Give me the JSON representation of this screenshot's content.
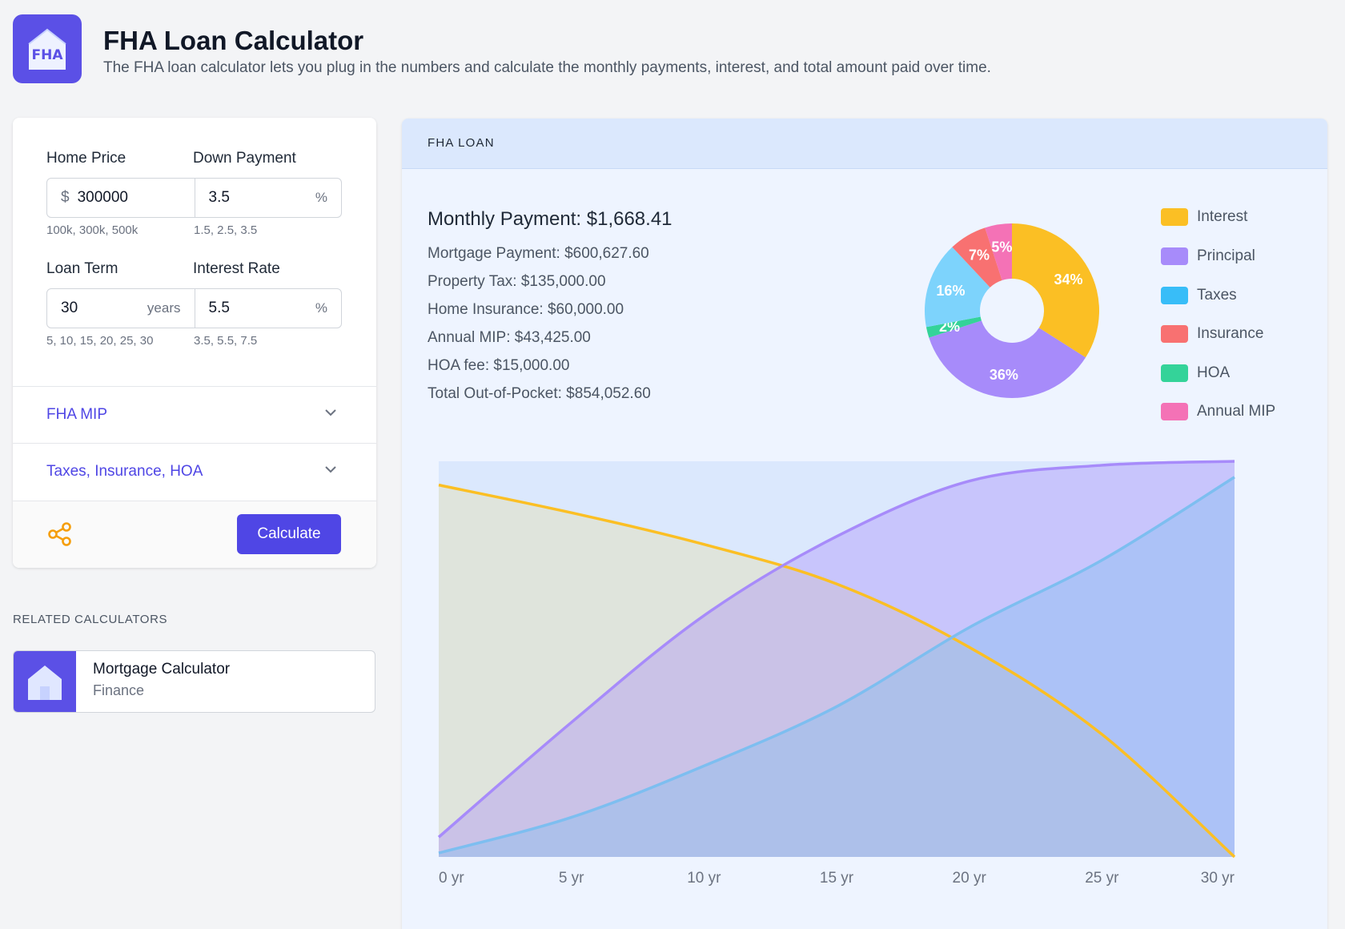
{
  "app": {
    "logo_text": "FHA",
    "title": "FHA Loan Calculator",
    "subtitle": "The FHA loan calculator lets you plug in the numbers and calculate the monthly payments, interest, and total amount paid over time."
  },
  "form": {
    "home_price": {
      "label": "Home Price",
      "prefix": "$",
      "value": "300000",
      "hint": "100k, 300k, 500k"
    },
    "down_payment": {
      "label": "Down Payment",
      "value": "3.5",
      "suffix": "%",
      "hint": "1.5, 2.5, 3.5"
    },
    "loan_term": {
      "label": "Loan Term",
      "value": "30",
      "suffix": "years",
      "hint": "5, 10, 15, 20, 25, 30"
    },
    "interest_rate": {
      "label": "Interest Rate",
      "value": "5.5",
      "suffix": "%",
      "hint": "3.5, 5.5, 7.5"
    },
    "accordions": [
      "FHA MIP",
      "Taxes, Insurance, HOA"
    ],
    "calculate_label": "Calculate"
  },
  "related": {
    "heading": "RELATED CALCULATORS",
    "items": [
      {
        "title": "Mortgage Calculator",
        "category": "Finance"
      }
    ]
  },
  "results": {
    "panel_title": "FHA LOAN",
    "monthly_payment": "Monthly Payment: $1,668.41",
    "lines": [
      "Mortgage Payment: $600,627.60",
      "Property Tax: $135,000.00",
      "Home Insurance: $60,000.00",
      "Annual MIP: $43,425.00",
      "HOA fee: $15,000.00",
      "Total Out-of-Pocket: $854,052.60"
    ]
  },
  "colors": {
    "brand": "#5b50e6",
    "accent": "#4f46e5",
    "share": "#f59e0b"
  },
  "chart_data": [
    {
      "type": "pie",
      "title": "",
      "categories": [
        "Interest",
        "Principal",
        "Taxes",
        "Insurance",
        "HOA",
        "Annual MIP"
      ],
      "values": [
        34,
        36,
        16,
        7,
        2,
        5
      ],
      "slice_order": [
        "Interest",
        "Principal",
        "HOA",
        "Taxes",
        "Insurance",
        "Annual MIP"
      ],
      "slice_values": [
        34,
        36,
        2,
        16,
        7,
        5
      ],
      "labels": [
        "34%",
        "36%",
        "2%",
        "16%",
        "7%",
        "5%"
      ],
      "colors": [
        "#fbbf24",
        "#a78bfa",
        "#34d399",
        "#7dd3fc",
        "#f87171",
        "#f472b6"
      ],
      "legend": {
        "position": "right",
        "items": [
          {
            "label": "Interest",
            "color": "#fbbf24"
          },
          {
            "label": "Principal",
            "color": "#a78bfa"
          },
          {
            "label": "Taxes",
            "color": "#38bdf8"
          },
          {
            "label": "Insurance",
            "color": "#f87171"
          },
          {
            "label": "HOA",
            "color": "#34d399"
          },
          {
            "label": "Annual MIP",
            "color": "#f472b6"
          }
        ]
      }
    },
    {
      "type": "area",
      "title": "",
      "xlabel": "",
      "ylabel": "",
      "x": [
        0,
        5,
        10,
        15,
        20,
        25,
        30
      ],
      "x_tick_labels": [
        "0 yr",
        "5 yr",
        "10 yr",
        "15 yr",
        "20 yr",
        "25 yr",
        "30 yr"
      ],
      "xlim": [
        0,
        30
      ],
      "ylim": [
        0,
        100
      ],
      "series": [
        {
          "name": "Interest",
          "color": "#fbbf24",
          "values": [
            94,
            87,
            79,
            69,
            53,
            31,
            0
          ]
        },
        {
          "name": "Principal",
          "color": "#a78bfa",
          "values": [
            5,
            34,
            61,
            81,
            95,
            99,
            100
          ]
        },
        {
          "name": "Taxes",
          "color": "#7dbef0",
          "values": [
            1,
            10,
            23,
            38,
            58,
            75,
            96
          ]
        }
      ]
    }
  ]
}
